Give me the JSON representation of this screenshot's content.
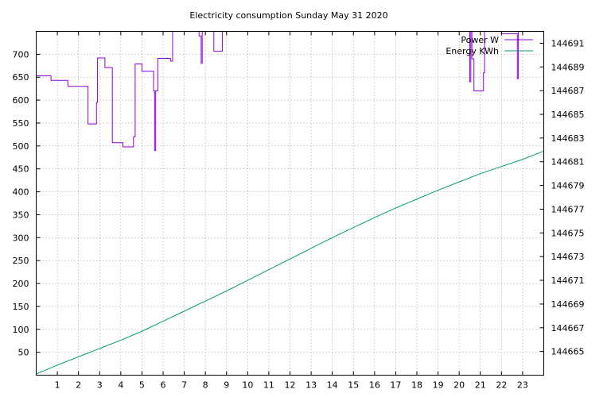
{
  "chart_data": {
    "type": "line",
    "title": "Electricity consumption Sunday May 31 2020",
    "xlabel": "",
    "ylabel": "",
    "y2label": "",
    "xlim": [
      0,
      24
    ],
    "ylim": [
      0,
      750
    ],
    "y2lim": [
      144663,
      144692
    ],
    "x_ticks": [
      1,
      2,
      3,
      4,
      5,
      6,
      7,
      8,
      9,
      10,
      11,
      12,
      13,
      14,
      15,
      16,
      17,
      18,
      19,
      20,
      21,
      22,
      23
    ],
    "y_ticks": [
      50,
      100,
      150,
      200,
      250,
      300,
      350,
      400,
      450,
      500,
      550,
      600,
      650,
      700
    ],
    "y2_ticks": [
      144665,
      144667,
      144669,
      144671,
      144673,
      144675,
      144677,
      144679,
      144681,
      144683,
      144685,
      144687,
      144689,
      144691
    ],
    "grid": true,
    "legend_position": "top-right",
    "series": [
      {
        "name": "Power W",
        "axis": "left",
        "color": "#9400d3",
        "step": true,
        "points": [
          [
            0,
            653
          ],
          [
            0.7,
            643
          ],
          [
            1.5,
            630
          ],
          [
            2.45,
            548
          ],
          [
            2.85,
            595
          ],
          [
            2.9,
            692
          ],
          [
            3.25,
            671
          ],
          [
            3.6,
            507
          ],
          [
            4.1,
            498
          ],
          [
            4.6,
            520
          ],
          [
            4.68,
            679
          ],
          [
            5.0,
            663
          ],
          [
            5.55,
            620
          ],
          [
            5.6,
            490
          ],
          [
            5.65,
            620
          ],
          [
            5.75,
            691
          ],
          [
            6.35,
            685
          ],
          [
            6.45,
            760
          ],
          [
            7.7,
            740
          ],
          [
            7.8,
            680
          ],
          [
            7.85,
            760
          ],
          [
            8.4,
            707
          ],
          [
            8.8,
            760
          ],
          [
            20.5,
            640
          ],
          [
            20.55,
            760
          ],
          [
            20.6,
            690
          ],
          [
            20.7,
            620
          ],
          [
            21.15,
            660
          ],
          [
            21.2,
            760
          ],
          [
            22.0,
            745
          ],
          [
            22.7,
            745
          ],
          [
            22.75,
            647
          ],
          [
            22.8,
            760
          ],
          [
            24,
            760
          ]
        ]
      },
      {
        "name": "Energy KWh",
        "axis": "right",
        "color": "#009e73",
        "step": false,
        "points": [
          [
            0,
            144663.1
          ],
          [
            1,
            144663.85
          ],
          [
            2,
            144664.55
          ],
          [
            3,
            144665.25
          ],
          [
            4,
            144665.95
          ],
          [
            5,
            144666.7
          ],
          [
            6,
            144667.55
          ],
          [
            7,
            144668.4
          ],
          [
            8,
            144669.25
          ],
          [
            9,
            144670.1
          ],
          [
            10,
            144671.0
          ],
          [
            11,
            144671.9
          ],
          [
            12,
            144672.8
          ],
          [
            13,
            144673.7
          ],
          [
            14,
            144674.6
          ],
          [
            15,
            144675.45
          ],
          [
            16,
            144676.3
          ],
          [
            17,
            144677.1
          ],
          [
            18,
            144677.85
          ],
          [
            19,
            144678.6
          ],
          [
            20,
            144679.3
          ],
          [
            21,
            144680.0
          ],
          [
            22,
            144680.6
          ],
          [
            23,
            144681.2
          ],
          [
            24,
            144681.9
          ]
        ]
      }
    ]
  }
}
